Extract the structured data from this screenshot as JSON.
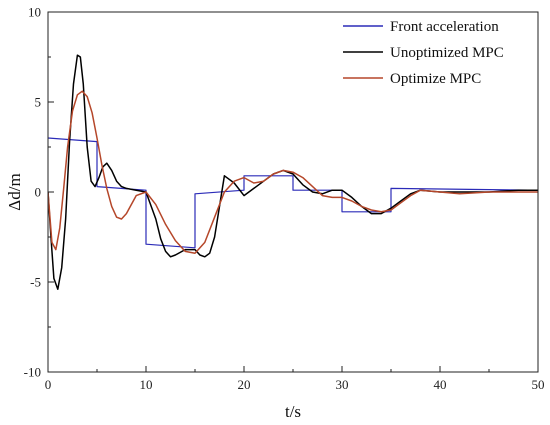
{
  "chart_data": {
    "type": "line",
    "title": "",
    "xlabel": "t/s",
    "ylabel": "Δd/m",
    "xlim": [
      0,
      50
    ],
    "ylim": [
      -10,
      10
    ],
    "xticks": [
      0,
      10,
      20,
      30,
      40,
      50
    ],
    "yticks": [
      -10,
      -5,
      0,
      5,
      10
    ],
    "grid": false,
    "legend_position": "top-right",
    "series": [
      {
        "name": "Front acceleration",
        "color": "#2b2bb8",
        "x": [
          0,
          5,
          5,
          10,
          10,
          15,
          15,
          20,
          20,
          25,
          25,
          30,
          30,
          35,
          35,
          50
        ],
        "y": [
          3.0,
          2.8,
          0.3,
          0.1,
          -2.9,
          -3.1,
          -0.1,
          0.1,
          0.9,
          0.9,
          0.1,
          0.1,
          -1.1,
          -1.1,
          0.2,
          0.1
        ]
      },
      {
        "name": "Unoptimized MPC",
        "color": "#000000",
        "x": [
          0,
          0.3,
          0.6,
          1.0,
          1.4,
          1.8,
          2.2,
          2.6,
          3.0,
          3.3,
          3.6,
          4.0,
          4.4,
          4.8,
          5.2,
          5.6,
          6.0,
          6.5,
          7.0,
          7.5,
          8.0,
          9.0,
          10.0,
          11.0,
          11.5,
          12.0,
          12.5,
          13.0,
          14.0,
          15.0,
          15.5,
          16.0,
          16.5,
          17.0,
          17.5,
          18.0,
          19.0,
          20.0,
          21.0,
          22.0,
          23.0,
          24.0,
          25.0,
          26.0,
          27.0,
          28.0,
          29.0,
          30.0,
          31.0,
          32.0,
          33.0,
          34.0,
          35.0,
          36.0,
          37.0,
          38.0,
          40.0,
          42.0,
          45.0,
          48.0,
          50.0
        ],
        "y": [
          0.0,
          -2.5,
          -4.8,
          -5.4,
          -4.2,
          -1.5,
          2.8,
          6.0,
          7.6,
          7.5,
          6.0,
          2.5,
          0.6,
          0.3,
          0.8,
          1.4,
          1.6,
          1.2,
          0.6,
          0.3,
          0.2,
          0.1,
          0.0,
          -1.5,
          -2.6,
          -3.3,
          -3.6,
          -3.5,
          -3.2,
          -3.2,
          -3.5,
          -3.6,
          -3.4,
          -2.5,
          -0.8,
          0.9,
          0.5,
          -0.2,
          0.2,
          0.6,
          1.0,
          1.2,
          1.0,
          0.4,
          0.0,
          -0.1,
          0.1,
          0.1,
          -0.3,
          -0.8,
          -1.2,
          -1.2,
          -0.9,
          -0.5,
          -0.1,
          0.1,
          0.0,
          0.0,
          0.0,
          0.1,
          0.1
        ]
      },
      {
        "name": "Optimize MPC",
        "color": "#b5472a",
        "x": [
          0,
          0.4,
          0.8,
          1.2,
          1.6,
          2.0,
          2.5,
          3.0,
          3.5,
          4.0,
          4.5,
          5.0,
          5.5,
          6.0,
          6.5,
          7.0,
          7.5,
          8.0,
          9.0,
          10.0,
          11.0,
          12.0,
          13.0,
          14.0,
          15.0,
          16.0,
          17.0,
          18.0,
          19.0,
          20.0,
          21.0,
          22.0,
          23.0,
          24.0,
          25.0,
          26.0,
          27.0,
          28.0,
          29.0,
          30.0,
          31.0,
          32.0,
          33.0,
          34.0,
          35.0,
          36.0,
          37.0,
          38.0,
          40.0,
          42.0,
          45.0,
          48.0,
          50.0
        ],
        "y": [
          0.0,
          -2.8,
          -3.2,
          -2.0,
          0.2,
          2.5,
          4.5,
          5.4,
          5.6,
          5.3,
          4.4,
          3.0,
          1.5,
          0.2,
          -0.8,
          -1.4,
          -1.5,
          -1.2,
          -0.2,
          0.0,
          -0.7,
          -1.8,
          -2.7,
          -3.3,
          -3.4,
          -2.8,
          -1.4,
          0.0,
          0.6,
          0.8,
          0.5,
          0.6,
          1.0,
          1.2,
          1.1,
          0.8,
          0.3,
          -0.2,
          -0.3,
          -0.3,
          -0.5,
          -0.8,
          -1.0,
          -1.1,
          -1.0,
          -0.6,
          -0.2,
          0.1,
          0.0,
          -0.1,
          0.0,
          0.0,
          0.0
        ]
      }
    ]
  }
}
